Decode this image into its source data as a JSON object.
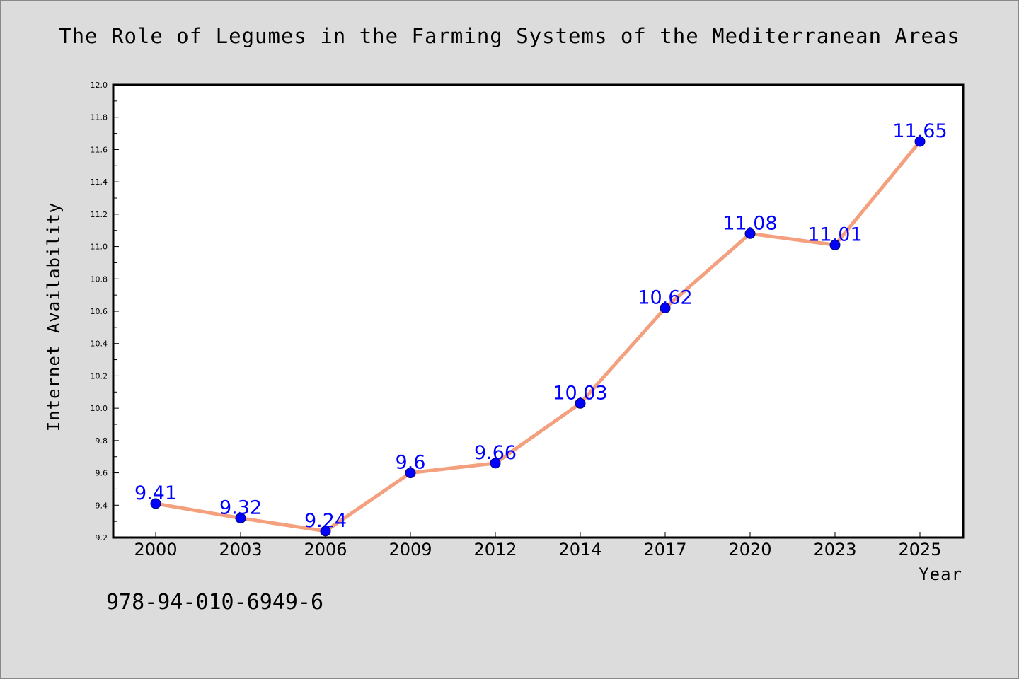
{
  "chart_data": {
    "type": "line",
    "title": "The Role of Legumes in the Farming Systems of the Mediterranean Areas",
    "xlabel": "Year",
    "ylabel": "Internet Availability",
    "categories": [
      "2000",
      "2003",
      "2006",
      "2009",
      "2012",
      "2014",
      "2017",
      "2020",
      "2023",
      "2025"
    ],
    "values": [
      9.41,
      9.32,
      9.24,
      9.6,
      9.66,
      10.03,
      10.62,
      11.08,
      11.01,
      11.65
    ],
    "data_labels": [
      "9.41",
      "9.32",
      "9.24",
      "9.6",
      "9.66",
      "10.03",
      "10.62",
      "11.08",
      "11.01",
      "11.65"
    ],
    "ylim": [
      9.2,
      12.0
    ],
    "yticks": [
      "9.2",
      "9.4",
      "9.6",
      "9.8",
      "10.0",
      "10.2",
      "10.4",
      "10.6",
      "10.8",
      "11.0",
      "11.2",
      "11.4",
      "11.6",
      "11.8",
      "12.0"
    ],
    "grid": false,
    "legend": "none"
  },
  "caption": "978-94-010-6949-6",
  "colors": {
    "background": "#dcdcdc",
    "plot_background": "#ffffff",
    "line": "#f4a07e",
    "marker": "#0000ff",
    "data_label": "#0000ff"
  }
}
